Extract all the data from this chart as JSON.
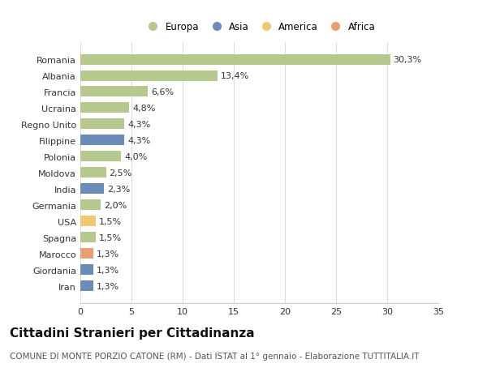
{
  "categories": [
    "Romania",
    "Albania",
    "Francia",
    "Ucraina",
    "Regno Unito",
    "Filippine",
    "Polonia",
    "Moldova",
    "India",
    "Germania",
    "USA",
    "Spagna",
    "Marocco",
    "Giordania",
    "Iran"
  ],
  "values": [
    30.3,
    13.4,
    6.6,
    4.8,
    4.3,
    4.3,
    4.0,
    2.5,
    2.3,
    2.0,
    1.5,
    1.5,
    1.3,
    1.3,
    1.3
  ],
  "labels": [
    "30,3%",
    "13,4%",
    "6,6%",
    "4,8%",
    "4,3%",
    "4,3%",
    "4,0%",
    "2,5%",
    "2,3%",
    "2,0%",
    "1,5%",
    "1,5%",
    "1,3%",
    "1,3%",
    "1,3%"
  ],
  "continents": [
    "Europa",
    "Europa",
    "Europa",
    "Europa",
    "Europa",
    "Asia",
    "Europa",
    "Europa",
    "Asia",
    "Europa",
    "America",
    "Europa",
    "Africa",
    "Asia",
    "Asia"
  ],
  "continent_colors": {
    "Europa": "#b5c98e",
    "Asia": "#6b8cba",
    "America": "#f0c870",
    "Africa": "#e8a070"
  },
  "legend_items": [
    {
      "label": "Europa",
      "color": "#b5c98e"
    },
    {
      "label": "Asia",
      "color": "#6b8cba"
    },
    {
      "label": "America",
      "color": "#f0c870"
    },
    {
      "label": "Africa",
      "color": "#e8a070"
    }
  ],
  "title": "Cittadini Stranieri per Cittadinanza",
  "subtitle": "COMUNE DI MONTE PORZIO CATONE (RM) - Dati ISTAT al 1° gennaio - Elaborazione TUTTITALIA.IT",
  "xlim": [
    0,
    35
  ],
  "xticks": [
    0,
    5,
    10,
    15,
    20,
    25,
    30,
    35
  ],
  "background_color": "#ffffff",
  "plot_bg_color": "#ffffff",
  "grid_color": "#dddddd",
  "title_fontsize": 11,
  "subtitle_fontsize": 7.5,
  "tick_fontsize": 8,
  "label_fontsize": 8
}
